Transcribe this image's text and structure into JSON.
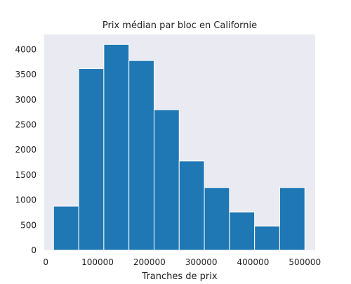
{
  "chart_data": {
    "type": "bar",
    "title": "Prix médian par bloc en Californie",
    "xlabel": "Tranches de prix",
    "ylabel": "",
    "xlim": [
      -3000,
      520000
    ],
    "ylim": [
      0,
      4300
    ],
    "xticks": [
      0,
      100000,
      200000,
      300000,
      400000,
      500000
    ],
    "xtick_labels": [
      "0",
      "100000",
      "200000",
      "300000",
      "400000",
      "500000"
    ],
    "yticks": [
      0,
      500,
      1000,
      1500,
      2000,
      2500,
      3000,
      3500,
      4000
    ],
    "ytick_labels": [
      "0",
      "500",
      "1000",
      "1500",
      "2000",
      "2500",
      "3000",
      "3500",
      "4000"
    ],
    "grid": false,
    "colors": {
      "bar": "#1f77b4",
      "plot_background": "#eaeaf2",
      "bar_edge": "#ffffff"
    },
    "bins": [
      {
        "x0": 14999,
        "x1": 63500,
        "count": 880
      },
      {
        "x0": 63500,
        "x1": 112000,
        "count": 3620
      },
      {
        "x0": 112000,
        "x1": 160500,
        "count": 4100
      },
      {
        "x0": 160500,
        "x1": 209000,
        "count": 3780
      },
      {
        "x0": 209000,
        "x1": 257500,
        "count": 2800
      },
      {
        "x0": 257500,
        "x1": 306000,
        "count": 1780
      },
      {
        "x0": 306000,
        "x1": 354500,
        "count": 1250
      },
      {
        "x0": 354500,
        "x1": 403000,
        "count": 760
      },
      {
        "x0": 403000,
        "x1": 451500,
        "count": 480
      },
      {
        "x0": 451500,
        "x1": 500001,
        "count": 1250
      }
    ]
  }
}
